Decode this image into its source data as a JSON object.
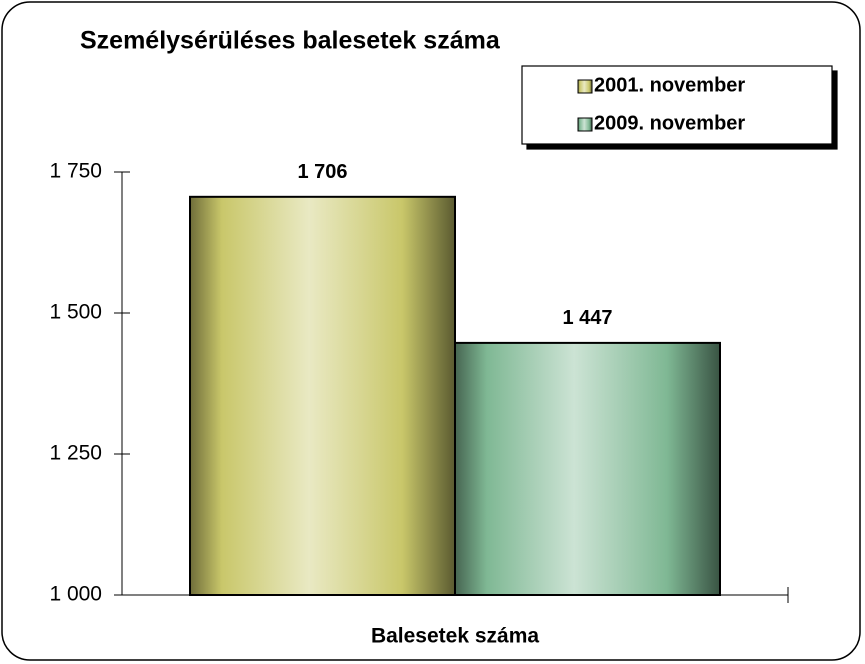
{
  "chart_data": {
    "type": "bar",
    "title": "Személysérüléses balesetek száma",
    "xlabel": "Balesetek száma",
    "categories": [
      null
    ],
    "series": [
      {
        "name": "2001. november",
        "color": "#c9c76a",
        "values": [
          1706
        ],
        "value_labels": [
          "1 706"
        ]
      },
      {
        "name": "2009. november",
        "color": "#7fb894",
        "values": [
          1447
        ],
        "value_labels": [
          "1 447"
        ]
      }
    ],
    "ylim": [
      1000,
      1750
    ],
    "yticks": [
      {
        "value": 1000,
        "label": "1 000"
      },
      {
        "value": 1250,
        "label": "1 250"
      },
      {
        "value": 1500,
        "label": "1 500"
      },
      {
        "value": 1750,
        "label": "1 750"
      }
    ],
    "grid": false,
    "legend": "top-right"
  }
}
